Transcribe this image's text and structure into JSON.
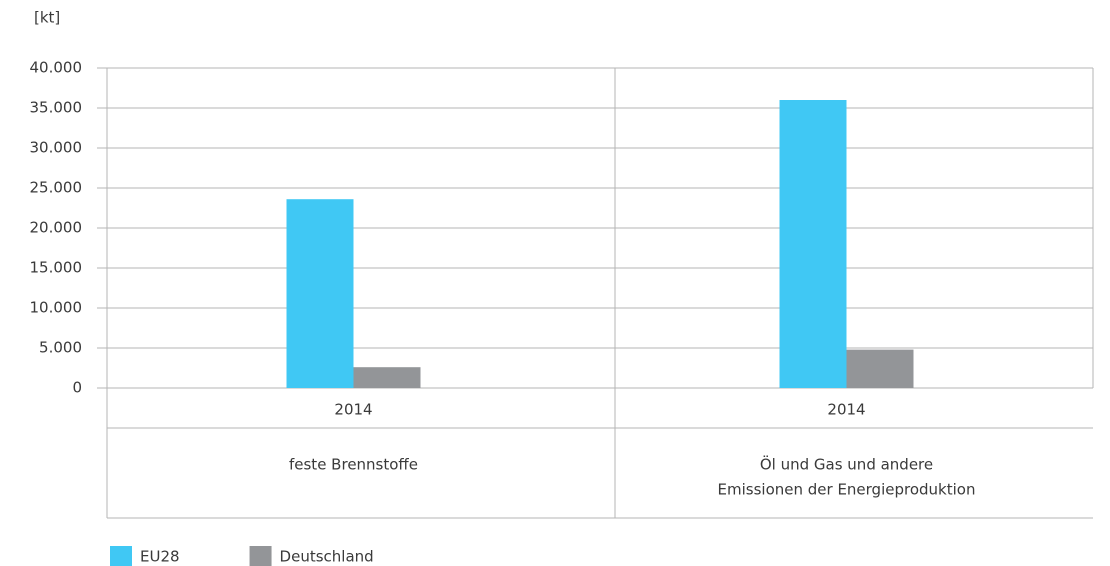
{
  "chart_data": {
    "type": "bar",
    "y_label": "[kt]",
    "categories": [
      "2014",
      "2014"
    ],
    "groups": [
      [
        "feste Brennstoffe"
      ],
      [
        "Öl und Gas und andere",
        "Emissionen der Energieproduktion"
      ]
    ],
    "series": [
      {
        "name": "EU28",
        "color": "#40c8f4",
        "values": [
          23600,
          36000
        ]
      },
      {
        "name": "Deutschland",
        "color": "#939598",
        "values": [
          2600,
          4800
        ]
      }
    ],
    "ylim": [
      0,
      40000
    ],
    "yticks": [
      0,
      {
        "value": 5000,
        "label": "5.000"
      },
      {
        "value": 10000,
        "label": "10.000"
      },
      {
        "value": 15000,
        "label": "15.000"
      },
      {
        "value": 20000,
        "label": "20.000"
      },
      {
        "value": 25000,
        "label": "25.000"
      },
      {
        "value": 30000,
        "label": "30.000"
      },
      {
        "value": 35000,
        "label": "35.000"
      },
      {
        "value": 40000,
        "label": "40.000"
      }
    ],
    "grid": true
  }
}
